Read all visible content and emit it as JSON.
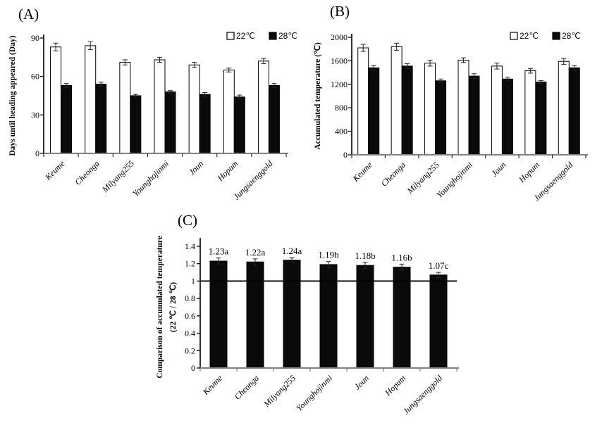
{
  "figure_background": "#ffffff",
  "colors": {
    "bar_white": "#ffffff",
    "bar_black": "#0a0a0a",
    "x_axis_gray": "#808080",
    "axis_black": "#1a1a1a"
  },
  "chart_data": [
    {
      "type": "bar",
      "panel_label": "(A)",
      "ylabel": "Days until heading appeared (Day)",
      "xlabel": "",
      "ylim": [
        0,
        90
      ],
      "yticks": [
        0,
        30,
        60,
        90
      ],
      "grid": false,
      "legend_position": "top-right",
      "categories": [
        "Keume",
        "Cheonga",
        "Milyang255",
        "Younghojinmi",
        "Joun",
        "Hopum",
        "Jungsaenggold"
      ],
      "series": [
        {
          "name": "22℃",
          "color": "#ffffff",
          "values": [
            83,
            84,
            71,
            73,
            69,
            65,
            72
          ],
          "errors": [
            3,
            3,
            2,
            2,
            2,
            1.5,
            2
          ]
        },
        {
          "name": "28℃",
          "color": "#0a0a0a",
          "values": [
            53,
            54,
            45,
            48,
            46,
            44,
            53
          ],
          "errors": [
            1.5,
            1.5,
            1,
            1,
            1.5,
            1.5,
            1.5
          ]
        }
      ]
    },
    {
      "type": "bar",
      "panel_label": "(B)",
      "ylabel": "Accumulated temperature (℃)",
      "xlabel": "",
      "ylim": [
        0,
        2000
      ],
      "yticks": [
        0,
        400,
        800,
        1200,
        1600,
        2000
      ],
      "grid": false,
      "legend_position": "top-right",
      "categories": [
        "Keume",
        "Cheonga",
        "Milyang255",
        "Younghojinmi",
        "Joun",
        "Hopum",
        "Jungsaenggold"
      ],
      "series": [
        {
          "name": "22℃",
          "color": "#ffffff",
          "values": [
            1820,
            1840,
            1560,
            1610,
            1510,
            1430,
            1590
          ],
          "errors": [
            60,
            60,
            50,
            40,
            50,
            40,
            50
          ]
        },
        {
          "name": "28℃",
          "color": "#0a0a0a",
          "values": [
            1480,
            1510,
            1260,
            1340,
            1290,
            1240,
            1480
          ],
          "errors": [
            40,
            40,
            30,
            40,
            30,
            25,
            40
          ]
        }
      ]
    },
    {
      "type": "bar",
      "panel_label": "(C)",
      "ylabel": [
        "Comparison of accumulated temperature",
        "(22 ℃ / 28 ℃)"
      ],
      "xlabel": "",
      "ylim": [
        0,
        1.4
      ],
      "yticks": [
        0,
        0.2,
        0.4,
        0.6,
        0.8,
        1,
        1.2,
        1.4
      ],
      "grid": false,
      "reference_line": 1,
      "categories": [
        "Keume",
        "Cheonga",
        "Milyang255",
        "Younghojinmi",
        "Joun",
        "Hopum",
        "Jungsaenggold"
      ],
      "series": [
        {
          "name": null,
          "color": "#0a0a0a",
          "values": [
            1.23,
            1.22,
            1.24,
            1.19,
            1.18,
            1.16,
            1.07
          ],
          "errors": [
            0.035,
            0.035,
            0.03,
            0.035,
            0.035,
            0.035,
            0.03
          ]
        }
      ],
      "value_labels": [
        "1.23a",
        "1.22a",
        "1.24a",
        "1.19b",
        "1.18b",
        "1.16b",
        "1.07c"
      ]
    }
  ]
}
